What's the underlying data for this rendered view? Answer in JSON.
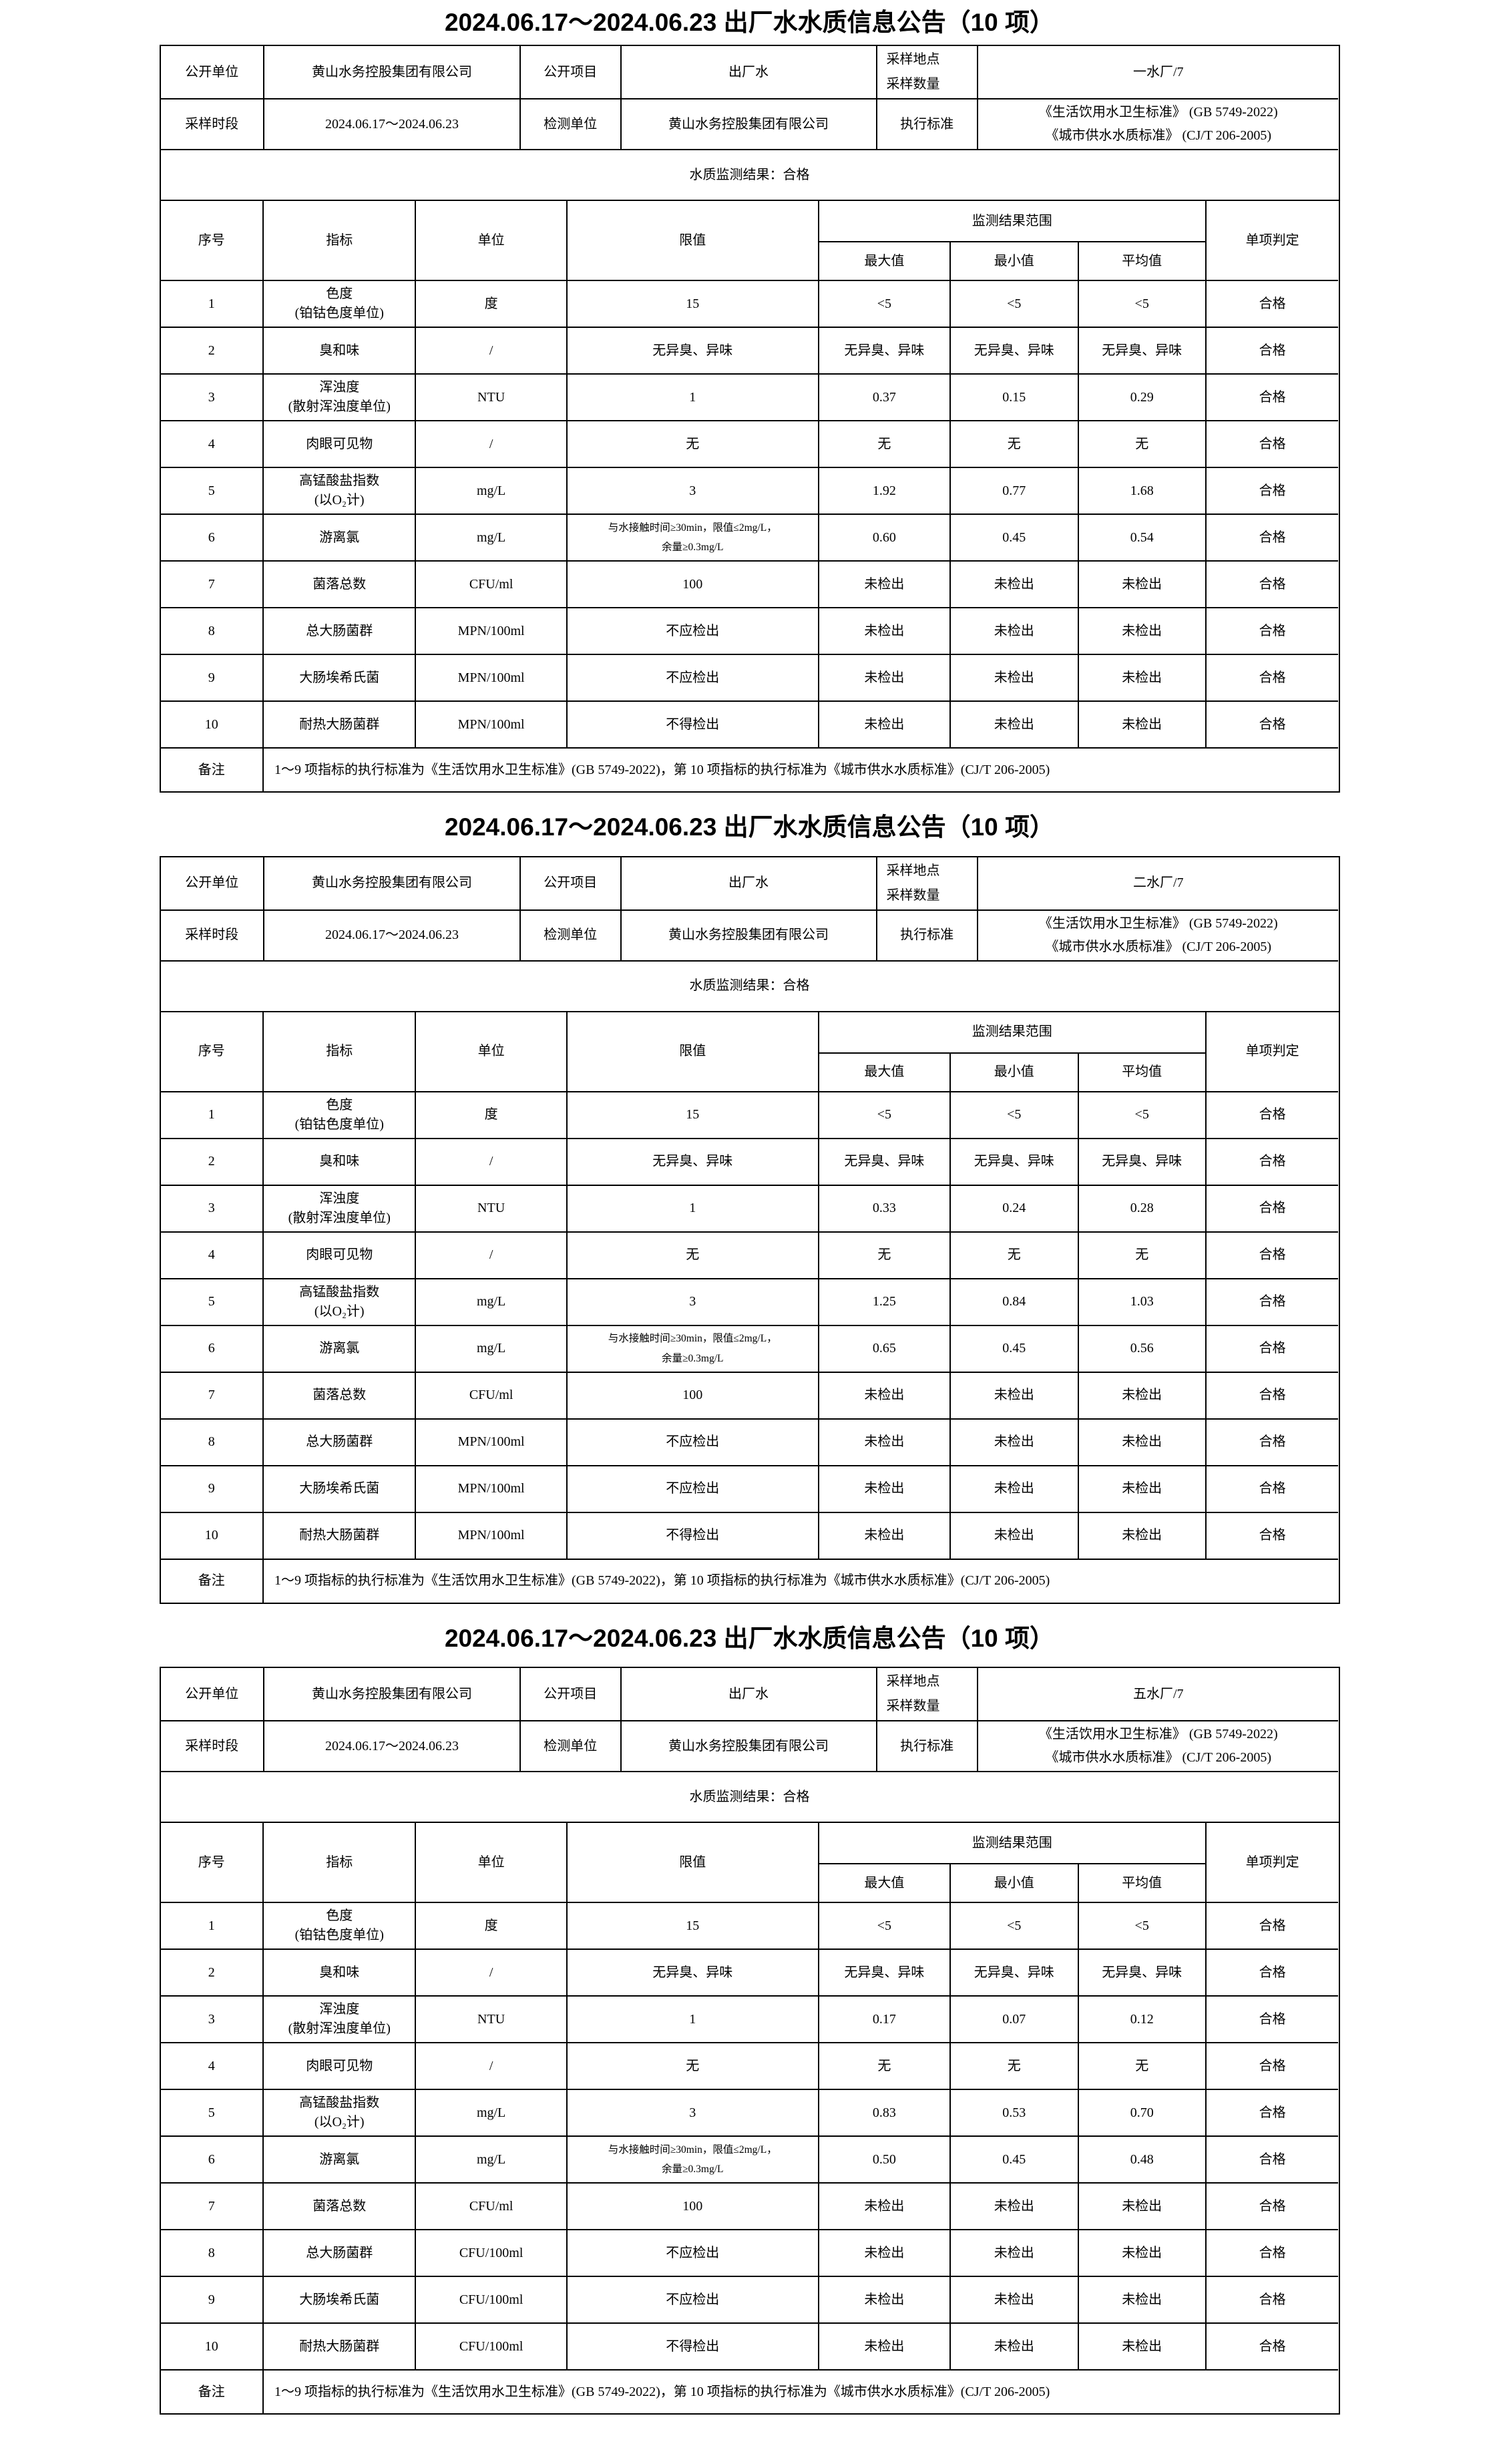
{
  "document": {
    "tables": [
      {
        "title": "2024.06.17～2024.06.23 出厂水水质信息公告（10 项）",
        "info_rows": [
          [
            "公开单位",
            "黄山水务控股集团有限公司",
            "公开项目",
            "出厂水",
            [
              "采样地点",
              "采样数量"
            ],
            "一水厂/7"
          ],
          [
            "采样时段",
            "2024.06.17～2024.06.23",
            "检测单位",
            "黄山水务控股集团有限公司",
            "执行标准",
            [
              "《生活饮用水卫生标准》 (GB 5749-2022)",
              "《城市供水水质标准》 (CJ/T 206-2005)"
            ]
          ]
        ],
        "result": "水质监测结果：合格",
        "header": {
          "no": "序号",
          "indicator": "指标",
          "unit": "单位",
          "limit": "限值",
          "range": "监测结果范围",
          "max": "最大值",
          "min": "最小值",
          "avg": "平均值",
          "verdict": "单项判定"
        },
        "rows": [
          {
            "no": "1",
            "name": [
              "色度",
              "(铂钴色度单位)"
            ],
            "unit": "度",
            "limit": "15",
            "max": "<5",
            "min": "<5",
            "avg": "<5",
            "verdict": "合格"
          },
          {
            "no": "2",
            "name": "臭和味",
            "unit": "/",
            "limit": "无异臭、异味",
            "max": "无异臭、异味",
            "min": "无异臭、异味",
            "avg": "无异臭、异味",
            "verdict": "合格"
          },
          {
            "no": "3",
            "name": [
              "浑浊度",
              "(散射浑浊度单位)"
            ],
            "unit": "NTU",
            "limit": "1",
            "max": "0.37",
            "min": "0.15",
            "avg": "0.29",
            "verdict": "合格"
          },
          {
            "no": "4",
            "name": "肉眼可见物",
            "unit": "/",
            "limit": "无",
            "max": "无",
            "min": "无",
            "avg": "无",
            "verdict": "合格"
          },
          {
            "no": "5",
            "name": [
              "高锰酸盐指数",
              "(以O₂计)"
            ],
            "unit": "mg/L",
            "limit": "3",
            "max": "1.92",
            "min": "0.77",
            "avg": "1.68",
            "verdict": "合格"
          },
          {
            "no": "6",
            "name": "游离氯",
            "unit": "mg/L",
            "limit": [
              "与水接触时间≥30min，限值≤2mg/L，",
              "余量≥0.3mg/L"
            ],
            "max": "0.60",
            "min": "0.45",
            "avg": "0.54",
            "verdict": "合格"
          },
          {
            "no": "7",
            "name": "菌落总数",
            "unit": "CFU/ml",
            "limit": "100",
            "max": "未检出",
            "min": "未检出",
            "avg": "未检出",
            "verdict": "合格"
          },
          {
            "no": "8",
            "name": "总大肠菌群",
            "unit": "MPN/100ml",
            "limit": "不应检出",
            "max": "未检出",
            "min": "未检出",
            "avg": "未检出",
            "verdict": "合格"
          },
          {
            "no": "9",
            "name": "大肠埃希氏菌",
            "unit": "MPN/100ml",
            "limit": "不应检出",
            "max": "未检出",
            "min": "未检出",
            "avg": "未检出",
            "verdict": "合格"
          },
          {
            "no": "10",
            "name": "耐热大肠菌群",
            "unit": "MPN/100ml",
            "limit": "不得检出",
            "max": "未检出",
            "min": "未检出",
            "avg": "未检出",
            "verdict": "合格"
          }
        ],
        "remark_label": "备注",
        "remark": "1～9 项指标的执行标准为《生活饮用水卫生标准》(GB 5749-2022)，第 10 项指标的执行标准为《城市供水水质标准》(CJ/T 206-2005)"
      },
      {
        "title": "2024.06.17～2024.06.23 出厂水水质信息公告（10 项）",
        "info_rows": [
          [
            "公开单位",
            "黄山水务控股集团有限公司",
            "公开项目",
            "出厂水",
            [
              "采样地点",
              "采样数量"
            ],
            "二水厂/7"
          ],
          [
            "采样时段",
            "2024.06.17～2024.06.23",
            "检测单位",
            "黄山水务控股集团有限公司",
            "执行标准",
            [
              "《生活饮用水卫生标准》 (GB 5749-2022)",
              "《城市供水水质标准》 (CJ/T 206-2005)"
            ]
          ]
        ],
        "result": "水质监测结果：合格",
        "header": {
          "no": "序号",
          "indicator": "指标",
          "unit": "单位",
          "limit": "限值",
          "range": "监测结果范围",
          "max": "最大值",
          "min": "最小值",
          "avg": "平均值",
          "verdict": "单项判定"
        },
        "rows": [
          {
            "no": "1",
            "name": [
              "色度",
              "(铂钴色度单位)"
            ],
            "unit": "度",
            "limit": "15",
            "max": "<5",
            "min": "<5",
            "avg": "<5",
            "verdict": "合格"
          },
          {
            "no": "2",
            "name": "臭和味",
            "unit": "/",
            "limit": "无异臭、异味",
            "max": "无异臭、异味",
            "min": "无异臭、异味",
            "avg": "无异臭、异味",
            "verdict": "合格"
          },
          {
            "no": "3",
            "name": [
              "浑浊度",
              "(散射浑浊度单位)"
            ],
            "unit": "NTU",
            "limit": "1",
            "max": "0.33",
            "min": "0.24",
            "avg": "0.28",
            "verdict": "合格"
          },
          {
            "no": "4",
            "name": "肉眼可见物",
            "unit": "/",
            "limit": "无",
            "max": "无",
            "min": "无",
            "avg": "无",
            "verdict": "合格"
          },
          {
            "no": "5",
            "name": [
              "高锰酸盐指数",
              "(以O₂计)"
            ],
            "unit": "mg/L",
            "limit": "3",
            "max": "1.25",
            "min": "0.84",
            "avg": "1.03",
            "verdict": "合格"
          },
          {
            "no": "6",
            "name": "游离氯",
            "unit": "mg/L",
            "limit": [
              "与水接触时间≥30min，限值≤2mg/L，",
              "余量≥0.3mg/L"
            ],
            "max": "0.65",
            "min": "0.45",
            "avg": "0.56",
            "verdict": "合格"
          },
          {
            "no": "7",
            "name": "菌落总数",
            "unit": "CFU/ml",
            "limit": "100",
            "max": "未检出",
            "min": "未检出",
            "avg": "未检出",
            "verdict": "合格"
          },
          {
            "no": "8",
            "name": "总大肠菌群",
            "unit": "MPN/100ml",
            "limit": "不应检出",
            "max": "未检出",
            "min": "未检出",
            "avg": "未检出",
            "verdict": "合格"
          },
          {
            "no": "9",
            "name": "大肠埃希氏菌",
            "unit": "MPN/100ml",
            "limit": "不应检出",
            "max": "未检出",
            "min": "未检出",
            "avg": "未检出",
            "verdict": "合格"
          },
          {
            "no": "10",
            "name": "耐热大肠菌群",
            "unit": "MPN/100ml",
            "limit": "不得检出",
            "max": "未检出",
            "min": "未检出",
            "avg": "未检出",
            "verdict": "合格"
          }
        ],
        "remark_label": "备注",
        "remark": "1～9 项指标的执行标准为《生活饮用水卫生标准》(GB 5749-2022)，第 10 项指标的执行标准为《城市供水水质标准》(CJ/T 206-2005)"
      },
      {
        "title": "2024.06.17～2024.06.23 出厂水水质信息公告（10 项）",
        "info_rows": [
          [
            "公开单位",
            "黄山水务控股集团有限公司",
            "公开项目",
            "出厂水",
            [
              "采样地点",
              "采样数量"
            ],
            "五水厂/7"
          ],
          [
            "采样时段",
            "2024.06.17～2024.06.23",
            "检测单位",
            "黄山水务控股集团有限公司",
            "执行标准",
            [
              "《生活饮用水卫生标准》 (GB 5749-2022)",
              "《城市供水水质标准》 (CJ/T 206-2005)"
            ]
          ]
        ],
        "result": "水质监测结果：合格",
        "header": {
          "no": "序号",
          "indicator": "指标",
          "unit": "单位",
          "limit": "限值",
          "range": "监测结果范围",
          "max": "最大值",
          "min": "最小值",
          "avg": "平均值",
          "verdict": "单项判定"
        },
        "rows": [
          {
            "no": "1",
            "name": [
              "色度",
              "(铂钴色度单位)"
            ],
            "unit": "度",
            "limit": "15",
            "max": "<5",
            "min": "<5",
            "avg": "<5",
            "verdict": "合格"
          },
          {
            "no": "2",
            "name": "臭和味",
            "unit": "/",
            "limit": "无异臭、异味",
            "max": "无异臭、异味",
            "min": "无异臭、异味",
            "avg": "无异臭、异味",
            "verdict": "合格"
          },
          {
            "no": "3",
            "name": [
              "浑浊度",
              "(散射浑浊度单位)"
            ],
            "unit": "NTU",
            "limit": "1",
            "max": "0.17",
            "min": "0.07",
            "avg": "0.12",
            "verdict": "合格"
          },
          {
            "no": "4",
            "name": "肉眼可见物",
            "unit": "/",
            "limit": "无",
            "max": "无",
            "min": "无",
            "avg": "无",
            "verdict": "合格"
          },
          {
            "no": "5",
            "name": [
              "高锰酸盐指数",
              "(以O₂计)"
            ],
            "unit": "mg/L",
            "limit": "3",
            "max": "0.83",
            "min": "0.53",
            "avg": "0.70",
            "verdict": "合格"
          },
          {
            "no": "6",
            "name": "游离氯",
            "unit": "mg/L",
            "limit": [
              "与水接触时间≥30min，限值≤2mg/L，",
              "余量≥0.3mg/L"
            ],
            "max": "0.50",
            "min": "0.45",
            "avg": "0.48",
            "verdict": "合格"
          },
          {
            "no": "7",
            "name": "菌落总数",
            "unit": "CFU/ml",
            "limit": "100",
            "max": "未检出",
            "min": "未检出",
            "avg": "未检出",
            "verdict": "合格"
          },
          {
            "no": "8",
            "name": "总大肠菌群",
            "unit": "CFU/100ml",
            "limit": "不应检出",
            "max": "未检出",
            "min": "未检出",
            "avg": "未检出",
            "verdict": "合格"
          },
          {
            "no": "9",
            "name": "大肠埃希氏菌",
            "unit": "CFU/100ml",
            "limit": "不应检出",
            "max": "未检出",
            "min": "未检出",
            "avg": "未检出",
            "verdict": "合格"
          },
          {
            "no": "10",
            "name": "耐热大肠菌群",
            "unit": "CFU/100ml",
            "limit": "不得检出",
            "max": "未检出",
            "min": "未检出",
            "avg": "未检出",
            "verdict": "合格"
          }
        ],
        "remark_label": "备注",
        "remark": "1～9 项指标的执行标准为《生活饮用水卫生标准》(GB 5749-2022)，第 10 项指标的执行标准为《城市供水水质标准》(CJ/T 206-2005)"
      }
    ]
  }
}
